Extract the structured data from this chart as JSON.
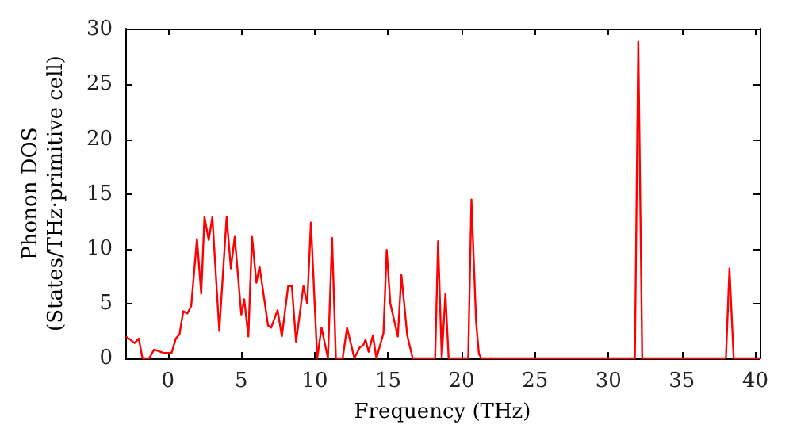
{
  "chart_data": {
    "type": "line",
    "xlabel": "Frequency (THz)",
    "ylabel": "Phonon DOS\n(States/THz·primitive cell)",
    "xlim": [
      -2.9,
      40.3
    ],
    "xticks": [
      0,
      5,
      10,
      15,
      20,
      25,
      30,
      35,
      40
    ],
    "ylim": [
      0,
      30.1
    ],
    "yticks": [
      0,
      5,
      10,
      15,
      20,
      25,
      30
    ],
    "marker": "none",
    "line_style": "solid",
    "series": [
      {
        "color": "#ff0000",
        "x": [
          -2.85,
          -2.27,
          -1.98,
          -1.73,
          -1.27,
          -0.94,
          -0.29,
          0.25,
          0.54,
          0.79,
          1.05,
          1.33,
          1.59,
          1.98,
          2.27,
          2.49,
          2.78,
          3.03,
          3.5,
          4.0,
          4.29,
          4.55,
          5.0,
          5.2,
          5.48,
          5.73,
          6.03,
          6.24,
          6.82,
          7.03,
          7.47,
          7.76,
          8.19,
          8.44,
          8.73,
          9.23,
          9.49,
          9.74,
          10.17,
          10.46,
          10.9,
          11.18,
          11.44,
          11.9,
          12.2,
          12.7,
          13.06,
          13.3,
          13.46,
          13.67,
          13.96,
          14.2,
          14.68,
          14.9,
          15.15,
          15.66,
          15.9,
          16.3,
          16.67,
          18.2,
          18.4,
          18.65,
          18.9,
          19.12,
          20.45,
          20.67,
          20.99,
          21.18,
          21.35,
          31.8,
          32.03,
          32.3,
          38.0,
          38.24,
          38.53,
          40.3
        ],
        "values": [
          2.0,
          1.4,
          1.8,
          0,
          0,
          0.8,
          0.5,
          0.5,
          1.8,
          2.2,
          4.3,
          4.1,
          4.8,
          10.9,
          5.9,
          12.9,
          10.8,
          12.9,
          2.5,
          12.9,
          8.2,
          11.1,
          4.0,
          5.4,
          2.0,
          11.1,
          6.9,
          8.4,
          3.0,
          2.8,
          4.4,
          2.0,
          6.6,
          6.6,
          1.5,
          6.6,
          5.0,
          12.4,
          0,
          2.8,
          0,
          11.0,
          0,
          0,
          2.8,
          0,
          1.0,
          1.2,
          1.7,
          0.6,
          2.1,
          0,
          2.3,
          9.9,
          5.0,
          2.0,
          7.6,
          2.1,
          0,
          0,
          10.7,
          0,
          5.9,
          0,
          0,
          14.5,
          3.3,
          0.4,
          0,
          0,
          28.9,
          0,
          0,
          8.2,
          0,
          0
        ]
      }
    ]
  }
}
